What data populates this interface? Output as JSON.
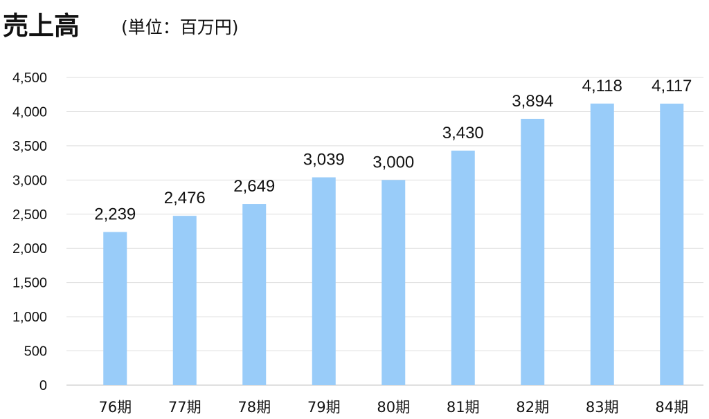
{
  "header": {
    "title": "売上高",
    "unit": "(単位：百万円)"
  },
  "colors": {
    "bar": "#99ccf9",
    "grid": "#dddddd",
    "axis": "#bfbfbf"
  },
  "chart_data": {
    "type": "bar",
    "title": "売上高",
    "subtitle": "(単位：百万円)",
    "xlabel": "",
    "ylabel": "",
    "categories": [
      "76期",
      "77期",
      "78期",
      "79期",
      "80期",
      "81期",
      "82期",
      "83期",
      "84期"
    ],
    "values": [
      2239,
      2476,
      2649,
      3039,
      3000,
      3430,
      3894,
      4118,
      4117
    ],
    "data_labels": [
      "2,239",
      "2,476",
      "2,649",
      "3,039",
      "3,000",
      "3,430",
      "3,894",
      "4,118",
      "4,117"
    ],
    "ylim": [
      0,
      4500
    ],
    "yticks": [
      0,
      500,
      1000,
      1500,
      2000,
      2500,
      3000,
      3500,
      4000,
      4500
    ],
    "ytick_labels": [
      "0",
      "500",
      "1,000",
      "1,500",
      "2,000",
      "2,500",
      "3,000",
      "3,500",
      "4,000",
      "4,500"
    ],
    "grid": true,
    "legend": "none"
  }
}
